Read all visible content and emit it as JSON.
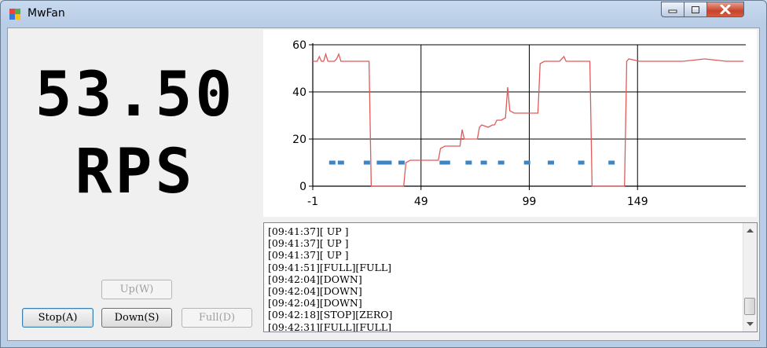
{
  "window": {
    "title": "MwFan",
    "icons": {
      "app": "mwfan-app-icon",
      "minimize": "minimize-icon",
      "maximize": "maximize-icon",
      "close": "close-icon"
    }
  },
  "display": {
    "value": "53.50",
    "unit": "RPS"
  },
  "buttons": {
    "up": "Up(W)",
    "stop": "Stop(A)",
    "down": "Down(S)",
    "full": "Full(D)"
  },
  "chart_data": {
    "type": "line",
    "x_ticks": [
      "-1",
      "49",
      "99",
      "149"
    ],
    "y_ticks": [
      "0",
      "20",
      "40",
      "60"
    ],
    "xlim": [
      -1,
      199
    ],
    "ylim": [
      0,
      60
    ],
    "grid": true,
    "series": [
      {
        "color": "#e05a5a",
        "style": "line",
        "points": [
          [
            -1,
            53
          ],
          [
            1,
            53
          ],
          [
            2,
            55
          ],
          [
            3,
            53
          ],
          [
            4,
            53
          ],
          [
            5,
            56
          ],
          [
            6,
            53
          ],
          [
            7,
            53
          ],
          [
            8,
            53
          ],
          [
            9,
            53
          ],
          [
            10,
            54
          ],
          [
            11,
            56
          ],
          [
            12,
            53
          ],
          [
            14,
            53
          ],
          [
            18,
            53
          ],
          [
            20,
            53
          ],
          [
            22,
            53
          ],
          [
            24,
            53
          ],
          [
            25,
            53
          ],
          [
            26,
            0
          ],
          [
            41,
            0
          ],
          [
            42,
            10
          ],
          [
            44,
            11
          ],
          [
            49,
            11
          ],
          [
            54,
            11
          ],
          [
            56,
            11
          ],
          [
            57,
            11
          ],
          [
            58,
            16
          ],
          [
            60,
            17
          ],
          [
            64,
            17
          ],
          [
            67,
            17
          ],
          [
            68,
            24
          ],
          [
            69,
            20
          ],
          [
            72,
            20
          ],
          [
            75,
            20
          ],
          [
            76,
            25
          ],
          [
            77,
            26
          ],
          [
            80,
            25
          ],
          [
            82,
            26
          ],
          [
            83,
            26
          ],
          [
            84,
            28
          ],
          [
            86,
            28
          ],
          [
            88,
            29
          ],
          [
            89,
            42
          ],
          [
            90,
            32
          ],
          [
            92,
            31
          ],
          [
            98,
            31
          ],
          [
            103,
            31
          ],
          [
            104,
            52
          ],
          [
            106,
            53
          ],
          [
            110,
            53
          ],
          [
            113,
            53
          ],
          [
            115,
            55
          ],
          [
            116,
            53
          ],
          [
            120,
            53
          ],
          [
            126,
            53
          ],
          [
            127,
            53
          ],
          [
            128,
            0
          ],
          [
            143,
            0
          ],
          [
            144,
            53
          ],
          [
            145,
            54
          ],
          [
            150,
            53
          ],
          [
            160,
            53
          ],
          [
            170,
            53
          ],
          [
            180,
            54
          ],
          [
            190,
            53
          ],
          [
            198,
            53
          ]
        ]
      },
      {
        "color": "#3d86c6",
        "style": "dots",
        "points": [
          [
            8,
            10
          ],
          [
            12,
            10
          ],
          [
            24,
            10
          ],
          [
            30,
            10
          ],
          [
            32,
            10
          ],
          [
            34,
            10
          ],
          [
            40,
            10
          ],
          [
            59,
            10
          ],
          [
            60,
            10
          ],
          [
            61,
            10
          ],
          [
            71,
            10
          ],
          [
            78,
            10
          ],
          [
            86,
            10
          ],
          [
            98,
            10
          ],
          [
            109,
            10
          ],
          [
            123,
            10
          ],
          [
            137,
            10
          ]
        ]
      }
    ]
  },
  "log": {
    "lines": [
      "[09:41:37][ UP ]",
      "[09:41:37][ UP ]",
      "[09:41:37][ UP ]",
      "[09:41:51][FULL][FULL]",
      "[09:42:04][DOWN]",
      "[09:42:04][DOWN]",
      "[09:42:04][DOWN]",
      "[09:42:18][STOP][ZERO]",
      "[09:42:31][FULL][FULL]"
    ]
  }
}
